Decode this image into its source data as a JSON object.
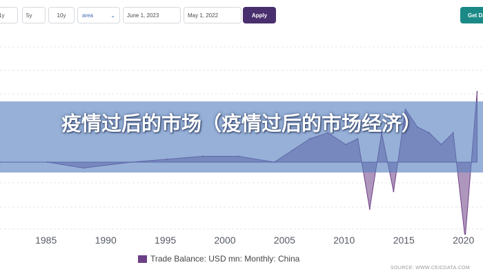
{
  "toolbar": {
    "range_buttons": [
      "1y",
      "5y",
      "10y"
    ],
    "chart_type": "area",
    "start_date": "June 1, 2023",
    "end_date": "May 1, 2022",
    "apply_label": "Apply",
    "get_data_label": "Get Da"
  },
  "banner": {
    "title": "疫情过后的市场（疫情过后的市场经济）"
  },
  "colors": {
    "series": "#6d3f86",
    "banner": "#5680be",
    "apply": "#4a2f6e",
    "get_data": "#1b8a87"
  },
  "chart_data": {
    "type": "area",
    "x_ticks": [
      "1985",
      "1990",
      "1995",
      "2000",
      "2005",
      "2010",
      "2015",
      "2020"
    ],
    "legend": "Trade Balance: USD mn: Monthly: China",
    "source": "SOURCE: WWW.CEICDATA.COM",
    "grid": true,
    "series": [
      {
        "name": "Trade Balance: USD mn: Monthly: China",
        "x": [
          1981.0,
          1985.0,
          1988.0,
          1992.0,
          1995.0,
          1998.0,
          2001.0,
          2004.0,
          2005.5,
          2007.0,
          2008.5,
          2010.0,
          2011.0,
          2012.0,
          2013.0,
          2014.0,
          2015.0,
          2016.0,
          2017.0,
          2018.0,
          2019.0,
          2020.0,
          2021.0
        ],
        "y": [
          0.0,
          0.0,
          -1.0,
          0.0,
          0.5,
          1.0,
          1.0,
          0.0,
          2.0,
          4.0,
          5.0,
          3.0,
          4.0,
          -8.0,
          5.0,
          -5.0,
          9.0,
          6.0,
          5.0,
          3.0,
          5.0,
          -13.0,
          12.0
        ]
      }
    ]
  }
}
